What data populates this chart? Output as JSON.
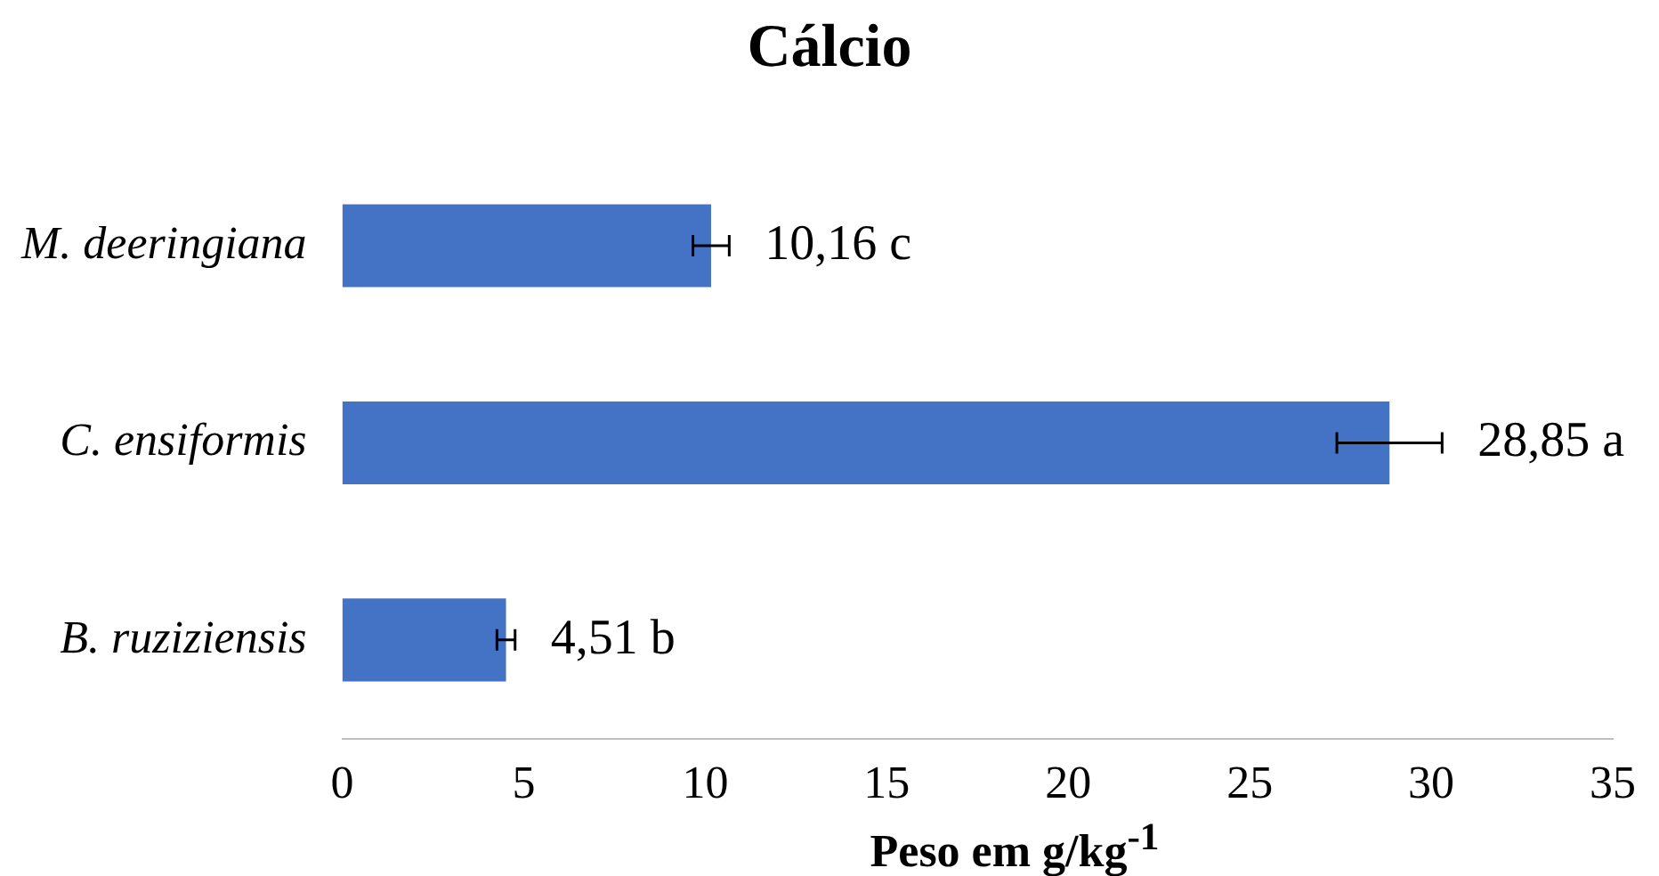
{
  "chart_data": {
    "type": "bar",
    "orientation": "horizontal",
    "title": "Cálcio",
    "xlabel": "Peso em g/kg$^{-1}$",
    "categories": [
      "M. deeringiana",
      "C. ensiformis",
      "B. ruziziensis"
    ],
    "values": [
      10.16,
      28.85,
      4.51
    ],
    "color": "#4472c4",
    "errors": [
      0.5,
      1.45,
      0.25
    ],
    "value_labels": [
      "10,16 c",
      "28,85 a",
      "4,51 b"
    ],
    "xlim": [
      0,
      35
    ],
    "xticks": [
      0,
      5,
      10,
      15,
      20,
      25,
      30,
      35
    ],
    "grid": false,
    "legend": false
  }
}
